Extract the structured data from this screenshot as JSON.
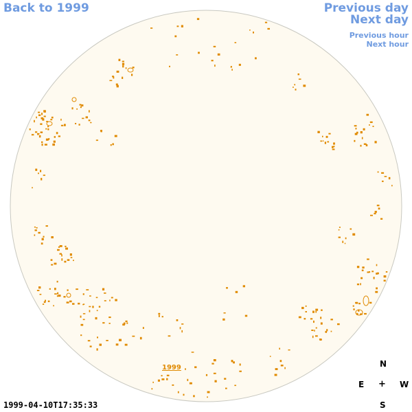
{
  "nav": {
    "back_label": "Back to 1999",
    "previous_day_label": "Previous day",
    "next_day_label": "Next day",
    "previous_hour_label": "Previous hour",
    "next_hour_label": "Next hour"
  },
  "disk": {
    "year_link": "1999",
    "fill_color": "#fefaf0",
    "outline_color": "#c8c8c0",
    "feature_color": "#e08a00"
  },
  "compass": {
    "north": "N",
    "east": "E",
    "center": "+",
    "west": "W",
    "south": "S"
  },
  "timestamp": "1999-04-10T17:35:33"
}
